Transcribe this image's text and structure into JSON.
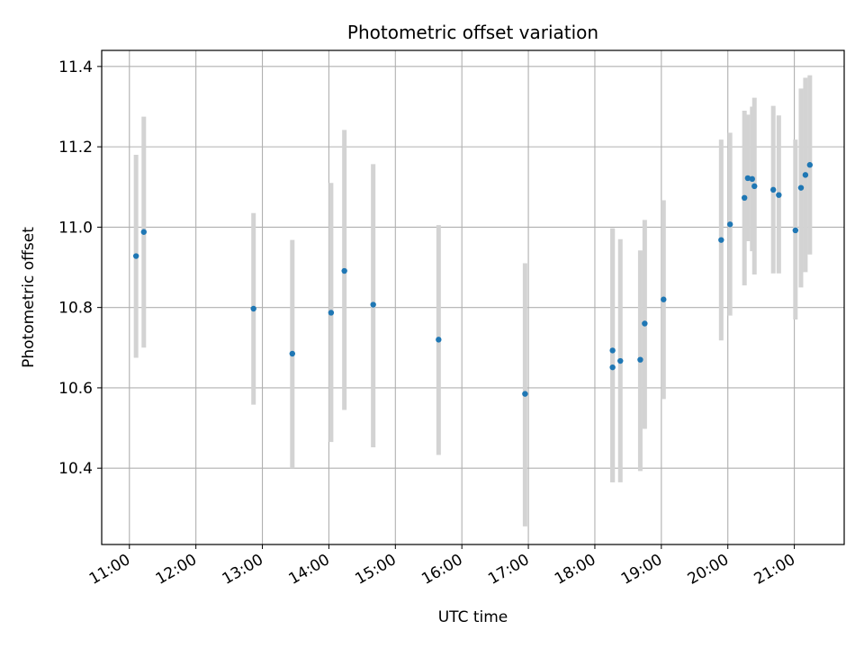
{
  "chart_data": {
    "type": "scatter",
    "title": "Photometric offset variation",
    "xlabel": "UTC time",
    "ylabel": "Photometric offset",
    "x_ticks": [
      "11:00",
      "12:00",
      "13:00",
      "14:00",
      "15:00",
      "16:00",
      "17:00",
      "18:00",
      "19:00",
      "20:00",
      "21:00"
    ],
    "y_ticks": [
      "10.4",
      "10.6",
      "10.8",
      "11.0",
      "11.2",
      "11.4"
    ],
    "xlim": [
      "10:35",
      "21:45"
    ],
    "ylim": [
      10.21,
      11.44
    ],
    "grid": true,
    "marker_color": "#1f77b4",
    "errorbar_color": "#d3d3d3",
    "points": [
      {
        "x": "11:06",
        "y": 10.928,
        "ylo": 10.675,
        "yhi": 11.18
      },
      {
        "x": "11:13",
        "y": 10.988,
        "ylo": 10.7,
        "yhi": 11.275
      },
      {
        "x": "12:52",
        "y": 10.797,
        "ylo": 10.558,
        "yhi": 11.035
      },
      {
        "x": "13:27",
        "y": 10.685,
        "ylo": 10.4,
        "yhi": 10.968
      },
      {
        "x": "14:02",
        "y": 10.787,
        "ylo": 10.465,
        "yhi": 11.11
      },
      {
        "x": "14:14",
        "y": 10.891,
        "ylo": 10.545,
        "yhi": 11.242
      },
      {
        "x": "14:40",
        "y": 10.807,
        "ylo": 10.452,
        "yhi": 11.157
      },
      {
        "x": "15:39",
        "y": 10.72,
        "ylo": 10.433,
        "yhi": 11.005
      },
      {
        "x": "16:57",
        "y": 10.585,
        "ylo": 10.255,
        "yhi": 10.91
      },
      {
        "x": "18:16",
        "y": 10.693,
        "ylo": 10.365,
        "yhi": 10.997
      },
      {
        "x": "18:16",
        "y": 10.651,
        "ylo": 10.365,
        "yhi": 10.997
      },
      {
        "x": "18:23",
        "y": 10.667,
        "ylo": 10.365,
        "yhi": 10.97
      },
      {
        "x": "18:41",
        "y": 10.67,
        "ylo": 10.393,
        "yhi": 10.942
      },
      {
        "x": "18:45",
        "y": 10.76,
        "ylo": 10.498,
        "yhi": 11.018
      },
      {
        "x": "19:02",
        "y": 10.82,
        "ylo": 10.572,
        "yhi": 11.067
      },
      {
        "x": "19:54",
        "y": 10.968,
        "ylo": 10.718,
        "yhi": 11.218
      },
      {
        "x": "20:02",
        "y": 11.007,
        "ylo": 10.78,
        "yhi": 11.235
      },
      {
        "x": "20:15",
        "y": 11.073,
        "ylo": 10.855,
        "yhi": 11.29
      },
      {
        "x": "20:18",
        "y": 11.122,
        "ylo": 10.965,
        "yhi": 11.28
      },
      {
        "x": "20:22",
        "y": 11.12,
        "ylo": 10.94,
        "yhi": 11.3
      },
      {
        "x": "20:24",
        "y": 11.102,
        "ylo": 10.882,
        "yhi": 11.322
      },
      {
        "x": "20:41",
        "y": 11.093,
        "ylo": 10.885,
        "yhi": 11.302
      },
      {
        "x": "20:46",
        "y": 11.08,
        "ylo": 10.885,
        "yhi": 11.278
      },
      {
        "x": "21:01",
        "y": 10.992,
        "ylo": 10.77,
        "yhi": 11.218
      },
      {
        "x": "21:06",
        "y": 11.098,
        "ylo": 10.85,
        "yhi": 11.345
      },
      {
        "x": "21:10",
        "y": 11.13,
        "ylo": 10.888,
        "yhi": 11.372
      },
      {
        "x": "21:14",
        "y": 11.155,
        "ylo": 10.932,
        "yhi": 11.378
      }
    ]
  }
}
